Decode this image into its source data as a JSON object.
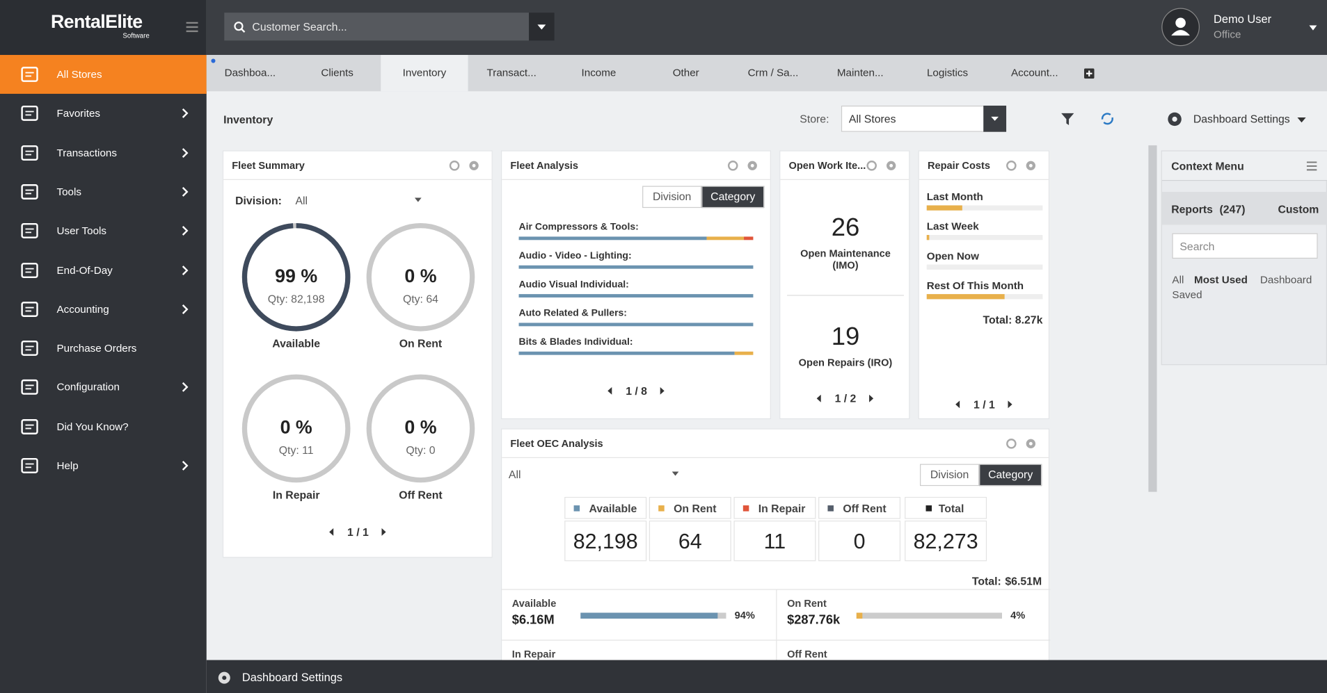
{
  "sidebar": {
    "logo": "RentalElite",
    "logo_sub": "Software",
    "items": [
      {
        "label": "All Stores",
        "submenu": false
      },
      {
        "label": "Favorites",
        "submenu": true
      },
      {
        "label": "Transactions",
        "submenu": true
      },
      {
        "label": "Tools",
        "submenu": true
      },
      {
        "label": "User Tools",
        "submenu": true
      },
      {
        "label": "End-Of-Day",
        "submenu": true
      },
      {
        "label": "Accounting",
        "submenu": true
      },
      {
        "label": "Purchase Orders",
        "submenu": false
      },
      {
        "label": "Configuration",
        "submenu": true
      },
      {
        "label": "Did You Know?",
        "submenu": false
      },
      {
        "label": "Help",
        "submenu": true
      }
    ]
  },
  "header": {
    "search_placeholder": "Customer Search...",
    "user_name": "Demo User",
    "user_role": "Office"
  },
  "tabs": [
    "Dashboa...",
    "Clients",
    "Inventory",
    "Transact...",
    "Income",
    "Other",
    "Crm / Sa...",
    "Mainten...",
    "Logistics",
    "Account..."
  ],
  "toolbar": {
    "title": "Inventory",
    "store_label": "Store:",
    "store_value": "All Stores",
    "settings": "Dashboard Settings"
  },
  "fleet_summary": {
    "title": "Fleet Summary",
    "division_label": "Division:",
    "division_value": "All",
    "gauges": [
      {
        "percent": "99 %",
        "qty": "Qty: 82,198",
        "label": "Available"
      },
      {
        "percent": "0 %",
        "qty": "Qty: 64",
        "label": "On Rent"
      },
      {
        "percent": "0 %",
        "qty": "Qty: 11",
        "label": "In Repair"
      },
      {
        "percent": "0 %",
        "qty": "Qty: 0",
        "label": "Off Rent"
      }
    ],
    "pager": "1 / 1"
  },
  "fleet_analysis": {
    "title": "Fleet Analysis",
    "toggle": [
      "Division",
      "Category"
    ],
    "rows": [
      "Air Compressors & Tools:",
      "Audio - Video - Lighting:",
      "Audio Visual Individual:",
      "Auto Related & Pullers:",
      "Bits & Blades Individual:"
    ],
    "pager": "1 / 8"
  },
  "open_work": {
    "title": "Open Work Ite...",
    "items": [
      {
        "count": "26",
        "label": "Open Maintenance (IMO)"
      },
      {
        "count": "19",
        "label": "Open Repairs (IRO)"
      }
    ],
    "pager": "1 / 2"
  },
  "repair_costs": {
    "title": "Repair Costs",
    "rows": [
      "Last Month",
      "Last Week",
      "Open Now",
      "Rest Of This Month"
    ],
    "total": "Total: 8.27k",
    "pager": "1 / 1"
  },
  "fleet_oec": {
    "title": "Fleet OEC Analysis",
    "filter": "All",
    "toggle": [
      "Division",
      "Category"
    ],
    "columns": [
      {
        "label": "Available",
        "value": "82,198",
        "color": "#6b93b0"
      },
      {
        "label": "On Rent",
        "value": "64",
        "color": "#e8b04b"
      },
      {
        "label": "In Repair",
        "value": "11",
        "color": "#e0553a"
      },
      {
        "label": "Off Rent",
        "value": "0",
        "color": "#555e6b"
      },
      {
        "label": "Total",
        "value": "82,273",
        "color": "#222222"
      }
    ],
    "total_label": "Total:",
    "total_value": "$6.51M",
    "rows": [
      {
        "label": "Available",
        "value": "$6.16M",
        "percent": "94%",
        "color": "#6b93b0"
      },
      {
        "label": "On Rent",
        "value": "$287.76k",
        "percent": "4%",
        "color": "#e8b04b"
      },
      {
        "label": "In Repair"
      },
      {
        "label": "Off Rent"
      }
    ]
  },
  "context_menu": {
    "title": "Context Menu",
    "reports": "Reports",
    "reports_count": "(247)",
    "custom": "Custom",
    "search_placeholder": "Search",
    "filters": [
      "All",
      "Most Used",
      "Dashboard",
      "Saved"
    ]
  },
  "footer": {
    "settings": "Dashboard Settings"
  }
}
